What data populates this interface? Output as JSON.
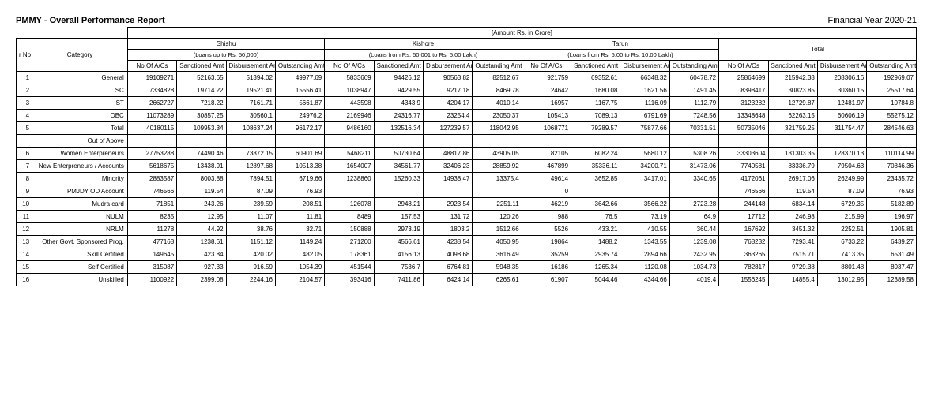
{
  "header": {
    "title": "PMMY - Overall Performance Report",
    "fy": "Financial Year 2020-21",
    "amount_note": "[Amount Rs. in Crore]"
  },
  "groups": [
    {
      "name": "Shishu",
      "sub": "(Loans up to Rs. 50,000)"
    },
    {
      "name": "Kishore",
      "sub": "(Loans from Rs. 50,001 to Rs. 5.00 Lakh)"
    },
    {
      "name": "Tarun",
      "sub": "(Loans from Rs. 5.00 to Rs. 10.00 Lakh)"
    },
    {
      "name": "Total",
      "sub": ""
    }
  ],
  "columns": {
    "sr": "r No",
    "category": "Category",
    "sub": [
      "No Of A/Cs",
      "Sanctioned Amt",
      "Disbursement Amt",
      "Outstanding Amt"
    ]
  },
  "rows": [
    {
      "sr": "1",
      "cat": "General",
      "vals": [
        "19109271",
        "52163.65",
        "51394.02",
        "49977.69",
        "5833669",
        "94426.12",
        "90563.82",
        "82512.67",
        "921759",
        "69352.61",
        "66348.32",
        "60478.72",
        "25864699",
        "215942.38",
        "208306.16",
        "192969.07"
      ]
    },
    {
      "sr": "2",
      "cat": "SC",
      "vals": [
        "7334828",
        "19714.22",
        "19521.41",
        "15556.41",
        "1038947",
        "9429.55",
        "9217.18",
        "8469.78",
        "24642",
        "1680.08",
        "1621.56",
        "1491.45",
        "8398417",
        "30823.85",
        "30360.15",
        "25517.64"
      ]
    },
    {
      "sr": "3",
      "cat": "ST",
      "vals": [
        "2662727",
        "7218.22",
        "7161.71",
        "5661.87",
        "443598",
        "4343.9",
        "4204.17",
        "4010.14",
        "16957",
        "1167.75",
        "1116.09",
        "1112.79",
        "3123282",
        "12729.87",
        "12481.97",
        "10784.8"
      ]
    },
    {
      "sr": "4",
      "cat": "OBC",
      "vals": [
        "11073289",
        "30857.25",
        "30560.1",
        "24976.2",
        "2169946",
        "24316.77",
        "23254.4",
        "23050.37",
        "105413",
        "7089.13",
        "6791.69",
        "7248.56",
        "13348648",
        "62263.15",
        "60606.19",
        "55275.12"
      ]
    },
    {
      "sr": "5",
      "cat": "Total",
      "vals": [
        "40180115",
        "109953.34",
        "108637.24",
        "96172.17",
        "9486160",
        "132516.34",
        "127239.57",
        "118042.95",
        "1068771",
        "79289.57",
        "75877.66",
        "70331.51",
        "50735046",
        "321759.25",
        "311754.47",
        "284546.63"
      ]
    },
    {
      "sr": "",
      "cat": "Out of Above",
      "vals": [
        "",
        "",
        "",
        "",
        "",
        "",
        "",
        "",
        "",
        "",
        "",
        "",
        "",
        "",
        "",
        ""
      ]
    },
    {
      "sr": "6",
      "cat": "Women Enterpreneurs",
      "vals": [
        "27753288",
        "74490.46",
        "73872.15",
        "60901.69",
        "5468211",
        "50730.64",
        "48817.86",
        "43905.05",
        "82105",
        "6082.24",
        "5680.12",
        "5308.26",
        "33303604",
        "131303.35",
        "128370.13",
        "110114.99"
      ]
    },
    {
      "sr": "7",
      "cat": "New Enterpreneurs / Accounts",
      "vals": [
        "5618675",
        "13438.91",
        "12897.68",
        "10513.38",
        "1654007",
        "34561.77",
        "32406.23",
        "28859.92",
        "467899",
        "35336.11",
        "34200.71",
        "31473.06",
        "7740581",
        "83336.79",
        "79504.63",
        "70846.36"
      ]
    },
    {
      "sr": "8",
      "cat": "Minority",
      "vals": [
        "2883587",
        "8003.88",
        "7894.51",
        "6719.66",
        "1238860",
        "15260.33",
        "14938.47",
        "13375.4",
        "49614",
        "3652.85",
        "3417.01",
        "3340.65",
        "4172061",
        "26917.06",
        "26249.99",
        "23435.72"
      ]
    },
    {
      "sr": "9",
      "cat": "PMJDY OD Account",
      "vals": [
        "746566",
        "119.54",
        "87.09",
        "76.93",
        "",
        "",
        "",
        "",
        "0",
        "",
        "",
        "",
        "746566",
        "119.54",
        "87.09",
        "76.93"
      ]
    },
    {
      "sr": "10",
      "cat": "Mudra card",
      "vals": [
        "71851",
        "243.26",
        "239.59",
        "208.51",
        "126078",
        "2948.21",
        "2923.54",
        "2251.11",
        "46219",
        "3642.66",
        "3566.22",
        "2723.28",
        "244148",
        "6834.14",
        "6729.35",
        "5182.89"
      ]
    },
    {
      "sr": "11",
      "cat": "NULM",
      "vals": [
        "8235",
        "12.95",
        "11.07",
        "11.81",
        "8489",
        "157.53",
        "131.72",
        "120.26",
        "988",
        "76.5",
        "73.19",
        "64.9",
        "17712",
        "246.98",
        "215.99",
        "196.97"
      ]
    },
    {
      "sr": "12",
      "cat": "NRLM",
      "vals": [
        "11278",
        "44.92",
        "38.76",
        "32.71",
        "150888",
        "2973.19",
        "1803.2",
        "1512.66",
        "5526",
        "433.21",
        "410.55",
        "360.44",
        "167692",
        "3451.32",
        "2252.51",
        "1905.81"
      ]
    },
    {
      "sr": "13",
      "cat": "Other Govt. Sponsored Prog.",
      "vals": [
        "477168",
        "1238.61",
        "1151.12",
        "1149.24",
        "271200",
        "4566.61",
        "4238.54",
        "4050.95",
        "19864",
        "1488.2",
        "1343.55",
        "1239.08",
        "768232",
        "7293.41",
        "6733.22",
        "6439.27"
      ]
    },
    {
      "sr": "14",
      "cat": "Skill Certified",
      "vals": [
        "149645",
        "423.84",
        "420.02",
        "482.05",
        "178361",
        "4156.13",
        "4098.68",
        "3616.49",
        "35259",
        "2935.74",
        "2894.66",
        "2432.95",
        "363265",
        "7515.71",
        "7413.35",
        "6531.49"
      ]
    },
    {
      "sr": "15",
      "cat": "Self Certified",
      "vals": [
        "315087",
        "927.33",
        "916.59",
        "1054.39",
        "451544",
        "7536.7",
        "6764.81",
        "5948.35",
        "16186",
        "1265.34",
        "1120.08",
        "1034.73",
        "782817",
        "9729.38",
        "8801.48",
        "8037.47"
      ]
    },
    {
      "sr": "16",
      "cat": "Unskilled",
      "vals": [
        "1100922",
        "2399.08",
        "2244.16",
        "2104.57",
        "393416",
        "7411.86",
        "6424.14",
        "6265.61",
        "61907",
        "5044.46",
        "4344.66",
        "4019.4",
        "1556245",
        "14855.4",
        "13012.95",
        "12389.58"
      ]
    }
  ]
}
